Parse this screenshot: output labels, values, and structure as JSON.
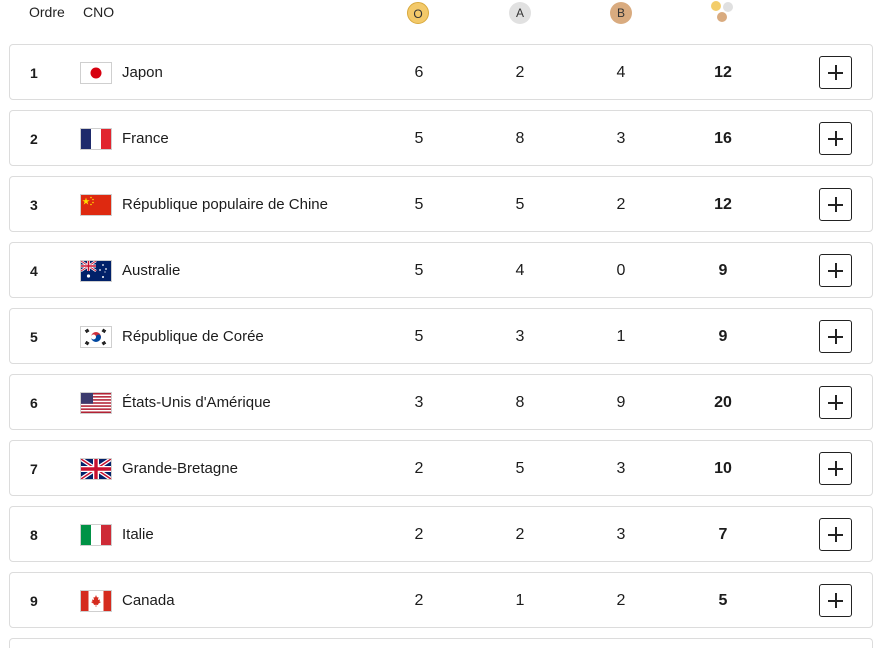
{
  "header": {
    "order_label": "Ordre",
    "cno_label": "CNO",
    "gold_label": "O",
    "silver_label": "A",
    "bronze_label": "B",
    "total_icon": "medals-total-icon"
  },
  "colors": {
    "gold": "#f3c969",
    "silver": "#e1e1e1",
    "bronze": "#d9ab7f",
    "border": "#dcdcdc"
  },
  "rows": [
    {
      "rank": "1",
      "flag": "japan-flag-icon",
      "country": "Japon",
      "gold": "6",
      "silver": "2",
      "bronze": "4",
      "total": "12"
    },
    {
      "rank": "2",
      "flag": "france-flag-icon",
      "country": "France",
      "gold": "5",
      "silver": "8",
      "bronze": "3",
      "total": "16"
    },
    {
      "rank": "3",
      "flag": "china-flag-icon",
      "country": "République populaire de Chine",
      "gold": "5",
      "silver": "5",
      "bronze": "2",
      "total": "12"
    },
    {
      "rank": "4",
      "flag": "australia-flag-icon",
      "country": "Australie",
      "gold": "5",
      "silver": "4",
      "bronze": "0",
      "total": "9"
    },
    {
      "rank": "5",
      "flag": "korea-flag-icon",
      "country": "République de Corée",
      "gold": "5",
      "silver": "3",
      "bronze": "1",
      "total": "9"
    },
    {
      "rank": "6",
      "flag": "usa-flag-icon",
      "country": "États-Unis d'Amérique",
      "gold": "3",
      "silver": "8",
      "bronze": "9",
      "total": "20"
    },
    {
      "rank": "7",
      "flag": "great-britain-flag-icon",
      "country": "Grande-Bretagne",
      "gold": "2",
      "silver": "5",
      "bronze": "3",
      "total": "10"
    },
    {
      "rank": "8",
      "flag": "italy-flag-icon",
      "country": "Italie",
      "gold": "2",
      "silver": "2",
      "bronze": "3",
      "total": "7"
    },
    {
      "rank": "9",
      "flag": "canada-flag-icon",
      "country": "Canada",
      "gold": "2",
      "silver": "1",
      "bronze": "2",
      "total": "5"
    }
  ]
}
